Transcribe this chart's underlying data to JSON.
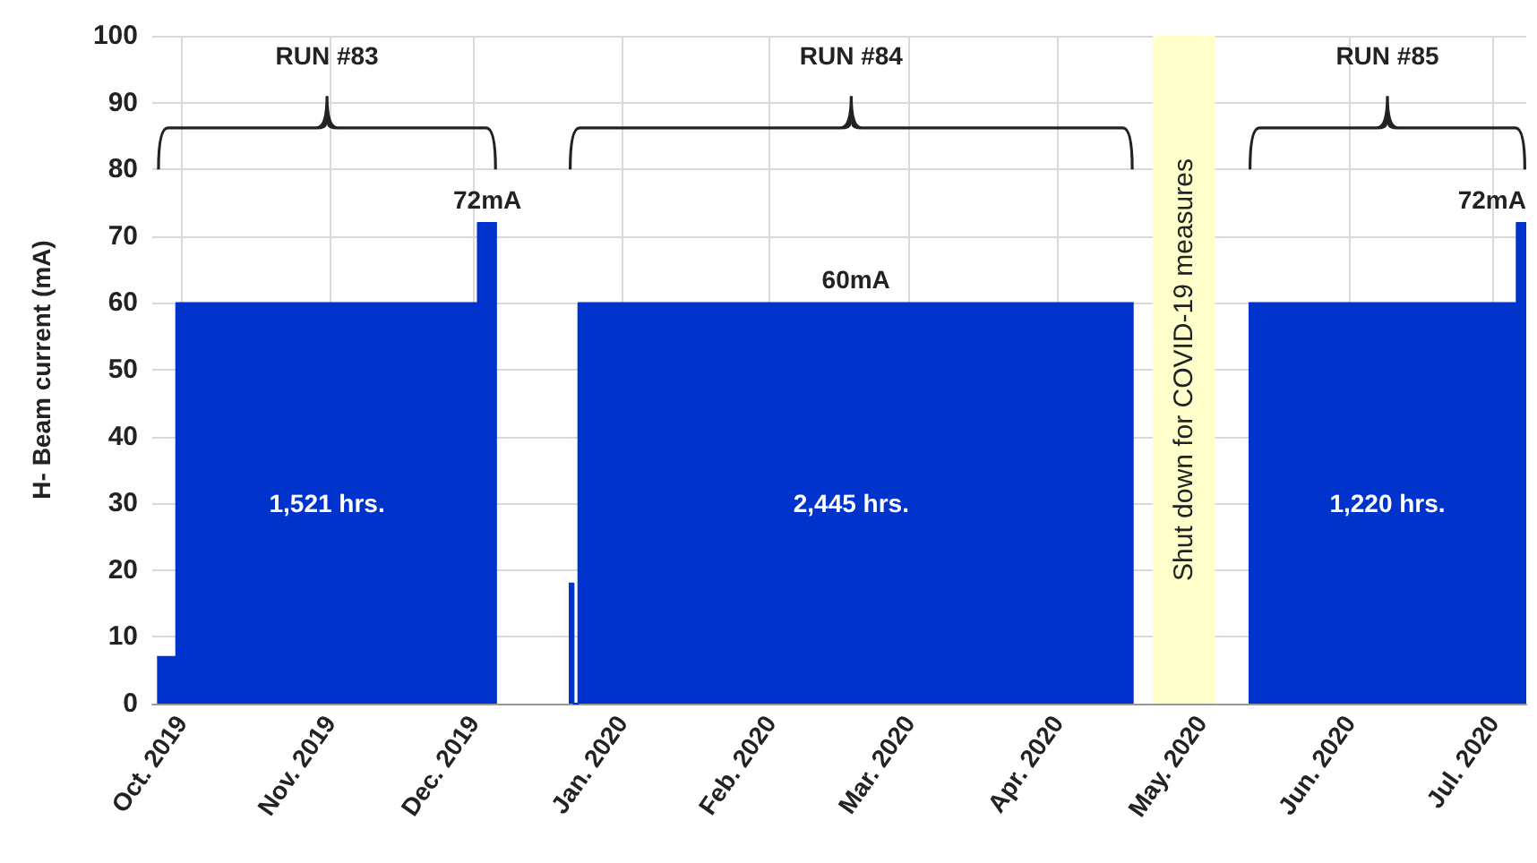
{
  "chart_data": {
    "type": "area",
    "ylabel": "H- Beam current (mA)",
    "xlim": [
      "2019-09-25",
      "2020-07-08"
    ],
    "xticks": [
      {
        "value": "2019-10-01",
        "label": "Oct. 2019"
      },
      {
        "value": "2019-11-01",
        "label": "Nov. 2019"
      },
      {
        "value": "2019-12-01",
        "label": "Dec. 2019"
      },
      {
        "value": "2020-01-01",
        "label": "Jan. 2020"
      },
      {
        "value": "2020-02-01",
        "label": "Feb. 2020"
      },
      {
        "value": "2020-03-01",
        "label": "Mar. 2020"
      },
      {
        "value": "2020-04-01",
        "label": "Apr. 2020"
      },
      {
        "value": "2020-05-01",
        "label": "May. 2020"
      },
      {
        "value": "2020-06-01",
        "label": "Jun. 2020"
      },
      {
        "value": "2020-07-01",
        "label": "Jul. 2020"
      }
    ],
    "ylim": [
      0,
      100
    ],
    "yticks": [
      0,
      10,
      20,
      30,
      40,
      50,
      60,
      70,
      80,
      90,
      100
    ],
    "grid": true,
    "series": [
      {
        "color": "#0033cc",
        "x": [
          "2019-09-26",
          "2019-09-30",
          "2019-09-30",
          "2019-12-02",
          "2019-12-02",
          "2019-12-04",
          "2019-12-06"
        ],
        "values": [
          7,
          7,
          60,
          60,
          72,
          72,
          72
        ],
        "value_labels": [
          null,
          null,
          null,
          null,
          null,
          "72mA",
          null
        ]
      },
      {
        "color": "#0033cc",
        "x": [
          "2019-12-21",
          "2019-12-22",
          "2019-12-22",
          "2019-12-23",
          "2019-12-23",
          "2020-02-19",
          "2020-04-17"
        ],
        "values": [
          18,
          18,
          0,
          0,
          60,
          60,
          60
        ],
        "value_labels": [
          null,
          null,
          null,
          null,
          null,
          "60mA",
          null
        ]
      },
      {
        "color": "#0033cc",
        "x": [
          "2020-05-11",
          "2020-07-06",
          "2020-07-06",
          "2020-07-08"
        ],
        "values": [
          60,
          60,
          72,
          72
        ],
        "value_labels": [
          null,
          null,
          null,
          "72mA"
        ]
      }
    ],
    "bands": [
      {
        "axis": "x",
        "from": "2020-04-21",
        "to": "2020-05-04",
        "label": "Shut down for COVID-19 measures",
        "color": "#ffffcc"
      }
    ],
    "annotations": [
      "RUN #83",
      "RUN #84",
      "RUN #85",
      "1,521 hrs.",
      "2,445 hrs.",
      "1,220 hrs."
    ]
  }
}
